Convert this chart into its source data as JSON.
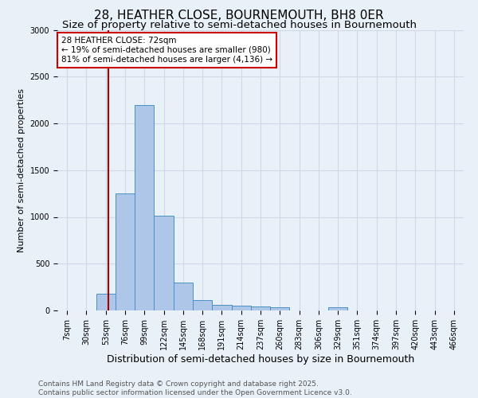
{
  "title": "28, HEATHER CLOSE, BOURNEMOUTH, BH8 0ER",
  "subtitle": "Size of property relative to semi-detached houses in Bournemouth",
  "xlabel": "Distribution of semi-detached houses by size in Bournemouth",
  "ylabel": "Number of semi-detached properties",
  "bin_labels": [
    "7sqm",
    "30sqm",
    "53sqm",
    "76sqm",
    "99sqm",
    "122sqm",
    "145sqm",
    "168sqm",
    "191sqm",
    "214sqm",
    "237sqm",
    "260sqm",
    "283sqm",
    "306sqm",
    "329sqm",
    "351sqm",
    "374sqm",
    "397sqm",
    "420sqm",
    "443sqm",
    "466sqm"
  ],
  "bar_heights": [
    0,
    0,
    175,
    1250,
    2200,
    1010,
    300,
    110,
    60,
    55,
    40,
    30,
    0,
    0,
    30,
    0,
    0,
    0,
    0,
    0,
    0
  ],
  "bar_color": "#aec6e8",
  "bar_edge_color": "#4a90c4",
  "background_color": "#e8f0f8",
  "grid_color": "#d0d8e8",
  "property_size": 72,
  "vline_color": "#aa0000",
  "vline_bin_index": 2.13,
  "annotation_text": "28 HEATHER CLOSE: 72sqm\n← 19% of semi-detached houses are smaller (980)\n81% of semi-detached houses are larger (4,136) →",
  "annotation_box_color": "#ffffff",
  "annotation_border_color": "#cc0000",
  "ylim": [
    0,
    3000
  ],
  "yticks": [
    0,
    500,
    1000,
    1500,
    2000,
    2500,
    3000
  ],
  "footer_text": "Contains HM Land Registry data © Crown copyright and database right 2025.\nContains public sector information licensed under the Open Government Licence v3.0.",
  "title_fontsize": 11,
  "subtitle_fontsize": 9.5,
  "xlabel_fontsize": 9,
  "ylabel_fontsize": 8,
  "tick_fontsize": 7,
  "footer_fontsize": 6.5
}
